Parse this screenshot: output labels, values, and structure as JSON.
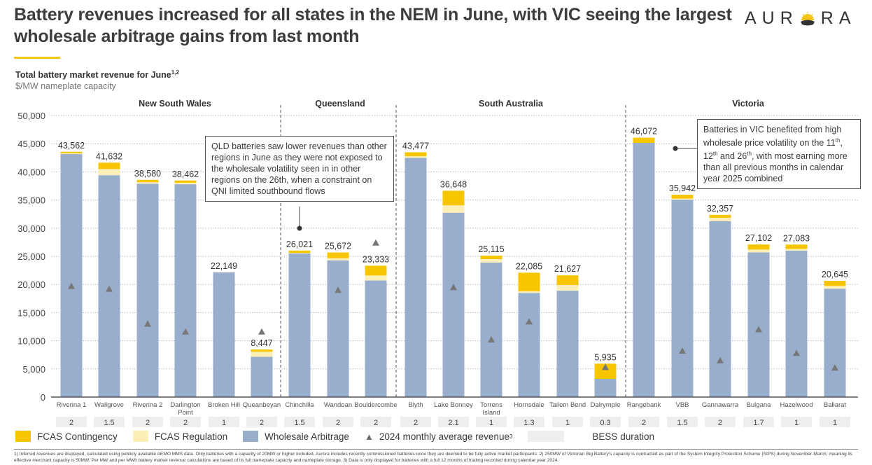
{
  "header": {
    "title": "Battery revenues increased for all states in the NEM in June, with VIC seeing the largest wholesale arbitrage gains from last month",
    "logo_left": "AUR",
    "logo_right": "RA",
    "logo_icon": "sun-icon"
  },
  "subtitle": {
    "text": "Total battery market revenue for June",
    "superscript": "1,2",
    "unit": "$/MW nameplate capacity"
  },
  "colors": {
    "fcas_contingency": "#f7c600",
    "fcas_regulation": "#fdefb6",
    "wholesale_arbitrage": "#99aecc",
    "triangle": "#777777",
    "duration_box": "#eeeeee",
    "accent": "#f5c518"
  },
  "callouts": {
    "qld": "QLD batteries saw lower revenues than other regions in June as they were not exposed to the wholesale volatility seen in in other regions on the 26th, when a constraint on QNI limited southbound flows",
    "vic_line1": "Batteries in VIC benefited from high wholesale price volatility on the 11",
    "vic_sup1": "th",
    "vic_mid1": ", 12",
    "vic_sup2": "th",
    "vic_mid2": " and 26",
    "vic_sup3": "th",
    "vic_end": ", with most earning more than all previous months in calendar year 2025 combined"
  },
  "legend": {
    "fcas_contingency": "FCAS Contingency",
    "fcas_regulation": "FCAS Regulation",
    "wholesale_arbitrage": "Wholesale Arbitrage",
    "avg_2024": "2024 monthly average revenue",
    "avg_2024_sup": "3",
    "bess_duration": "BESS duration"
  },
  "footnote": "1) Inferred revenues are displayed, calculated using publicly available AEMO MMS data. Only batteries with a capacity of 20MW or higher included. Aurora includes recently commissioned batteries once they are deemed to be fully active market participants. 2) 250MW of Victorian Big Battery's capacity is contracted as part of the System Integrity Protection Scheme (SIPS) during November-March, meaning its effective merchant capacity is 50MW. Per MW and per MWh battery market revenue calculations are based of its full nameplate capacity and nameplate storage. 3) Data is only displayed for batteries with a full 12 months of trading recorded during calendar year 2024.",
  "chart_data": {
    "type": "bar",
    "stacked": true,
    "title": "Total battery market revenue for June",
    "ylabel": "$/MW nameplate capacity",
    "xlabel": "",
    "ylim": [
      0,
      50000
    ],
    "yticks": [
      0,
      5000,
      10000,
      15000,
      20000,
      25000,
      30000,
      35000,
      40000,
      45000,
      50000
    ],
    "ytick_labels": [
      "0",
      "5,000",
      "10,000",
      "15,000",
      "20,000",
      "25,000",
      "30,000",
      "35,000",
      "40,000",
      "45,000",
      "50,000"
    ],
    "grid": true,
    "legend_position": "bottom-left",
    "groups": [
      {
        "name": "New South Wales",
        "start": 0,
        "count": 6
      },
      {
        "name": "Queensland",
        "start": 6,
        "count": 3
      },
      {
        "name": "South Australia",
        "start": 9,
        "count": 6
      },
      {
        "name": "Victoria",
        "start": 15,
        "count": 6
      }
    ],
    "categories": [
      "Riverina 1",
      "Wallgrove",
      "Riverina 2",
      "Darlington Point",
      "Broken Hill",
      "Queanbeyan",
      "Chinchilla",
      "Wandoan",
      "Bouldercombe",
      "Blyth",
      "Lake Bonney",
      "Torrens Island",
      "Hornsdale",
      "Tailem Bend",
      "Dalrymple",
      "Rangebank",
      "VBB",
      "Gannawarra",
      "Bulgana",
      "Hazelwood",
      "Ballarat"
    ],
    "category_lines": [
      [
        "Riverina 1"
      ],
      [
        "Wallgrove"
      ],
      [
        "Riverina 2"
      ],
      [
        "Darlington",
        "Point"
      ],
      [
        "Broken Hill"
      ],
      [
        "Queanbeyan"
      ],
      [
        "Chinchilla"
      ],
      [
        "Wandoan"
      ],
      [
        "Bouldercombe"
      ],
      [
        "Blyth"
      ],
      [
        "Lake Bonney"
      ],
      [
        "Torrens",
        "Island"
      ],
      [
        "Hornsdale"
      ],
      [
        "Tailem Bend"
      ],
      [
        "Dalrymple"
      ],
      [
        "Rangebank"
      ],
      [
        "VBB"
      ],
      [
        "Gannawarra"
      ],
      [
        "Bulgana"
      ],
      [
        "Hazelwood"
      ],
      [
        "Ballarat"
      ]
    ],
    "totals": [
      43562,
      41632,
      38580,
      38462,
      22149,
      8447,
      26021,
      25672,
      23333,
      43477,
      36648,
      25115,
      22085,
      21627,
      5935,
      46072,
      35942,
      32357,
      27102,
      27083,
      20645
    ],
    "total_labels": [
      "43,562",
      "41,632",
      "38,580",
      "38,462",
      "22,149",
      "8,447",
      "26,021",
      "25,672",
      "23,333",
      "43,477",
      "36,648",
      "25,115",
      "22,085",
      "21,627",
      "5,935",
      "46,072",
      "35,942",
      "32,357",
      "27,102",
      "27,083",
      "20,645"
    ],
    "series": [
      {
        "name": "Wholesale Arbitrage",
        "values": [
          43150,
          39400,
          37900,
          37800,
          22149,
          7150,
          25500,
          24270,
          20700,
          42500,
          32750,
          23900,
          18500,
          18900,
          3235,
          45150,
          35050,
          31250,
          25700,
          26000,
          19250
        ]
      },
      {
        "name": "FCAS Regulation",
        "values": [
          150,
          1100,
          250,
          250,
          0,
          900,
          100,
          400,
          900,
          280,
          1300,
          600,
          300,
          1000,
          0,
          0,
          200,
          600,
          500,
          300,
          500
        ]
      },
      {
        "name": "FCAS Contingency",
        "values": [
          262,
          1132,
          430,
          412,
          0,
          397,
          421,
          1002,
          1733,
          697,
          2598,
          615,
          3285,
          1727,
          2700,
          922,
          692,
          507,
          902,
          783,
          895
        ]
      }
    ],
    "avg_2024": [
      19700,
      19200,
      13000,
      11600,
      null,
      11600,
      null,
      19000,
      27400,
      null,
      19500,
      10200,
      13400,
      null,
      5300,
      null,
      8200,
      6500,
      12000,
      7800,
      5200
    ],
    "bess_duration": [
      "2",
      "1.5",
      "2",
      "2",
      "1",
      "2",
      "1.5",
      "2",
      "2",
      "2",
      "2.1",
      "1",
      "1.3",
      "1",
      "0.3",
      "2",
      "1.5",
      "2",
      "1.7",
      "1",
      "1"
    ]
  }
}
